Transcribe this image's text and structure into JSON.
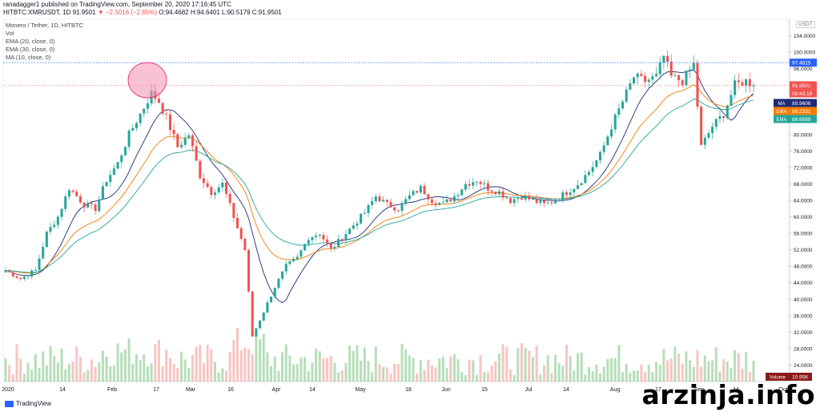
{
  "header": {
    "publisher": "ranadagger1 published on TradingView.com, September 20, 2020 17:16:45 UTC",
    "symbol": "HITBTC:XMRUSDT, 1D",
    "price": "91.9501",
    "change": "−2.5016 (−2.65%)",
    "ohlc": "O:94.4682 H:94.6401 L:90.5179 C:91.9501"
  },
  "legend": {
    "title": "Monero / Tether, 1D, HITBTC",
    "vol": "Vol",
    "ema20": "EMA (20, close, 0)",
    "ema30": "EMA (30, close, 0)",
    "ma10": "MA (10, close, 0)"
  },
  "axis_unit": "USDT",
  "footer": {
    "brand": "TradingView",
    "watermark": "arzinja.info"
  },
  "chart_data": {
    "type": "candlestick",
    "title": "Monero / Tether, 1D, HITBTC",
    "ylim": [
      20,
      108
    ],
    "y_ticks": [
      "104.0000",
      "100.0000",
      "96.0000",
      "92.0000",
      "88.0000",
      "84.0000",
      "80.0000",
      "76.0000",
      "72.0000",
      "68.0000",
      "64.0000",
      "60.0000",
      "56.0000",
      "52.0000",
      "48.0000",
      "44.0000",
      "40.0000",
      "36.0000",
      "32.0000",
      "28.0000",
      "24.0000"
    ],
    "x_labels": [
      "2020",
      "14",
      "Feb",
      "17",
      "Mar",
      "16",
      "Apr",
      "14",
      "May",
      "18",
      "Jun",
      "15",
      "Jul",
      "14",
      "Aug",
      "17",
      "Sep",
      "14",
      "Oct"
    ],
    "price_anchors": [
      [
        0,
        47
      ],
      [
        4,
        45
      ],
      [
        8,
        47
      ],
      [
        11,
        56
      ],
      [
        14,
        60
      ],
      [
        17,
        67
      ],
      [
        21,
        63
      ],
      [
        24,
        62
      ],
      [
        27,
        69
      ],
      [
        30,
        73
      ],
      [
        33,
        80
      ],
      [
        36,
        85
      ],
      [
        39,
        90
      ],
      [
        41,
        88
      ],
      [
        43,
        84
      ],
      [
        46,
        77
      ],
      [
        49,
        80
      ],
      [
        52,
        70
      ],
      [
        55,
        66
      ],
      [
        58,
        68
      ],
      [
        61,
        60
      ],
      [
        64,
        52
      ],
      [
        66,
        31
      ],
      [
        69,
        37
      ],
      [
        72,
        43
      ],
      [
        75,
        48
      ],
      [
        78,
        50
      ],
      [
        81,
        55
      ],
      [
        84,
        56
      ],
      [
        87,
        52
      ],
      [
        90,
        55
      ],
      [
        93,
        58
      ],
      [
        96,
        61
      ],
      [
        99,
        65
      ],
      [
        102,
        63
      ],
      [
        105,
        62
      ],
      [
        108,
        65
      ],
      [
        111,
        67
      ],
      [
        114,
        64
      ],
      [
        117,
        63
      ],
      [
        120,
        65
      ],
      [
        123,
        68
      ],
      [
        126,
        69
      ],
      [
        129,
        67
      ],
      [
        132,
        66
      ],
      [
        135,
        64
      ],
      [
        138,
        65
      ],
      [
        141,
        64
      ],
      [
        144,
        63
      ],
      [
        147,
        64
      ],
      [
        150,
        66
      ],
      [
        153,
        68
      ],
      [
        156,
        71
      ],
      [
        159,
        75
      ],
      [
        162,
        82
      ],
      [
        165,
        88
      ],
      [
        168,
        94
      ],
      [
        171,
        93
      ],
      [
        174,
        94
      ],
      [
        176,
        99
      ],
      [
        178,
        94
      ],
      [
        181,
        93
      ],
      [
        184,
        97
      ],
      [
        186,
        77
      ],
      [
        189,
        82
      ],
      [
        192,
        85
      ],
      [
        195,
        92
      ],
      [
        198,
        93
      ],
      [
        200,
        91.95
      ]
    ],
    "series": [
      {
        "name": "MA",
        "value": "89.9606",
        "color": "#1e2a78"
      },
      {
        "name": "EMA",
        "value": "89.2331",
        "color": "#f57c00"
      },
      {
        "name": "EMA",
        "value": "88.6589",
        "color": "#26a69a"
      }
    ],
    "last_price": {
      "value": "91.9501",
      "countdown": "06:43:19",
      "color": "#ef5350"
    },
    "level": {
      "value": "97.4615",
      "color": "#2962ff"
    },
    "volume": {
      "name": "Volume",
      "value": "10.95K"
    },
    "colors": {
      "up": "#26a69a",
      "down": "#ef5350",
      "vol_up": "#a5d6a7",
      "vol_down": "#f5b7b1"
    }
  }
}
